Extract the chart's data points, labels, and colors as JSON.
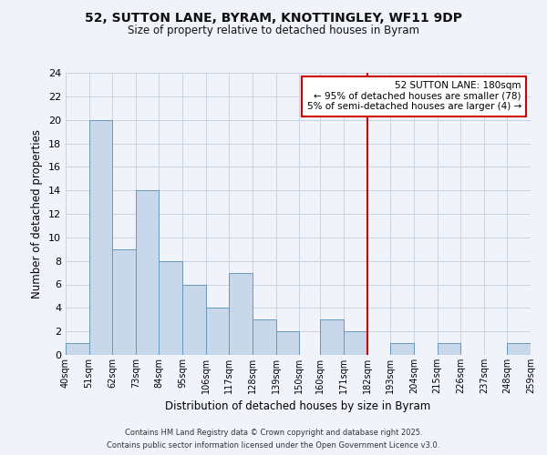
{
  "title_line1": "52, SUTTON LANE, BYRAM, KNOTTINGLEY, WF11 9DP",
  "title_line2": "Size of property relative to detached houses in Byram",
  "xlabel": "Distribution of detached houses by size in Byram",
  "ylabel": "Number of detached properties",
  "bin_edges": [
    40,
    51,
    62,
    73,
    84,
    95,
    106,
    117,
    128,
    139,
    150,
    160,
    171,
    182,
    193,
    204,
    215,
    226,
    237,
    248,
    259
  ],
  "bar_heights": [
    1,
    20,
    9,
    14,
    8,
    6,
    4,
    7,
    3,
    2,
    0,
    3,
    2,
    0,
    1,
    0,
    1,
    0,
    0,
    1
  ],
  "bar_color": "#c8d8ea",
  "bar_edge_color": "#6699bb",
  "bar_linewidth": 0.7,
  "red_line_x": 182,
  "red_line_color": "#cc0000",
  "ylim": [
    0,
    24
  ],
  "yticks": [
    0,
    2,
    4,
    6,
    8,
    10,
    12,
    14,
    16,
    18,
    20,
    22,
    24
  ],
  "grid_color": "#c8d4e4",
  "annotation_title": "52 SUTTON LANE: 180sqm",
  "annotation_line1": "← 95% of detached houses are smaller (78)",
  "annotation_line2": "5% of semi-detached houses are larger (4) →",
  "annotation_box_edge": "#cc0000",
  "footer_line1": "Contains HM Land Registry data © Crown copyright and database right 2025.",
  "footer_line2": "Contains public sector information licensed under the Open Government Licence v3.0.",
  "background_color": "#f0f4fa"
}
